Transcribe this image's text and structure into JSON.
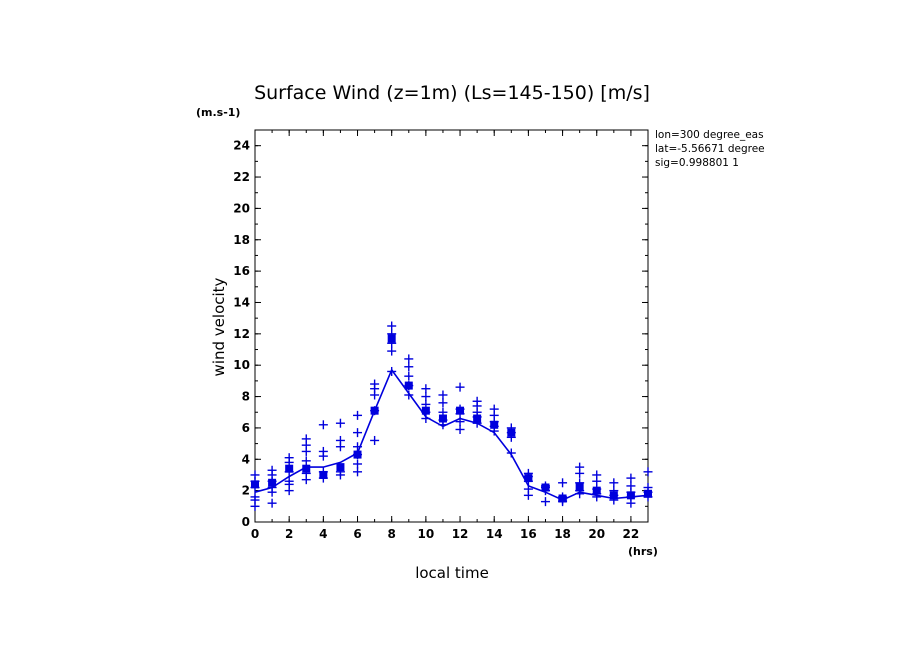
{
  "chart_data": {
    "type": "line",
    "title": "Surface Wind (z=1m) (Ls=145-150) [m/s]",
    "y_unit": "(m.s-1)",
    "x_unit": "(hrs)",
    "xlabel": "local time",
    "ylabel": "wind velocity",
    "xlim": [
      0,
      23
    ],
    "ylim": [
      0,
      25
    ],
    "x_ticks": [
      0,
      2,
      4,
      6,
      8,
      10,
      12,
      14,
      16,
      18,
      20,
      22
    ],
    "y_ticks": [
      0,
      2,
      4,
      6,
      8,
      10,
      12,
      14,
      16,
      18,
      20,
      22,
      24
    ],
    "info_lines": [
      "lon=300 degree_eas",
      "lat=-5.56671 degree",
      "sig=0.998801 1"
    ],
    "colors": {
      "series": "#0000dd"
    },
    "series": [
      {
        "name": "mean",
        "x": [
          0,
          1,
          2,
          3,
          4,
          5,
          6,
          7,
          8,
          9,
          10,
          11,
          12,
          13,
          14,
          15,
          16,
          17,
          18,
          19,
          20,
          21,
          22,
          23
        ],
        "values": [
          1.9,
          2.2,
          2.9,
          3.5,
          3.5,
          3.8,
          4.4,
          7.1,
          9.7,
          8.2,
          6.7,
          6.1,
          6.6,
          6.3,
          5.7,
          4.3,
          2.3,
          1.9,
          1.4,
          1.9,
          1.7,
          1.5,
          1.6,
          1.7
        ]
      },
      {
        "name": "scatter",
        "style": "plus",
        "points": [
          [
            0,
            3.0
          ],
          [
            0,
            2.6
          ],
          [
            0,
            2.2
          ],
          [
            0,
            1.6
          ],
          [
            0,
            1.4
          ],
          [
            0,
            1.0
          ],
          [
            1,
            3.3
          ],
          [
            1,
            3.0
          ],
          [
            1,
            2.6
          ],
          [
            1,
            2.2
          ],
          [
            1,
            1.9
          ],
          [
            1,
            1.2
          ],
          [
            2,
            4.1
          ],
          [
            2,
            3.8
          ],
          [
            2,
            3.2
          ],
          [
            2,
            2.6
          ],
          [
            2,
            2.4
          ],
          [
            2,
            2.0
          ],
          [
            3,
            5.3
          ],
          [
            3,
            4.9
          ],
          [
            3,
            4.5
          ],
          [
            3,
            3.9
          ],
          [
            3,
            3.1
          ],
          [
            3,
            2.7
          ],
          [
            4,
            6.2
          ],
          [
            4,
            4.5
          ],
          [
            4,
            4.2
          ],
          [
            4,
            3.2
          ],
          [
            4,
            2.8
          ],
          [
            5,
            6.3
          ],
          [
            5,
            5.2
          ],
          [
            5,
            4.8
          ],
          [
            5,
            3.2
          ],
          [
            5,
            3.0
          ],
          [
            6,
            6.8
          ],
          [
            6,
            5.7
          ],
          [
            6,
            4.8
          ],
          [
            6,
            4.3
          ],
          [
            6,
            3.7
          ],
          [
            6,
            3.2
          ],
          [
            7,
            8.8
          ],
          [
            7,
            8.5
          ],
          [
            7,
            8.1
          ],
          [
            7,
            7.1
          ],
          [
            7,
            5.2
          ],
          [
            8,
            12.5
          ],
          [
            8,
            12.0
          ],
          [
            8,
            11.4
          ],
          [
            8,
            10.9
          ],
          [
            8,
            9.6
          ],
          [
            9,
            10.4
          ],
          [
            9,
            9.9
          ],
          [
            9,
            9.3
          ],
          [
            9,
            8.7
          ],
          [
            9,
            8.1
          ],
          [
            10,
            8.5
          ],
          [
            10,
            8.0
          ],
          [
            10,
            7.5
          ],
          [
            10,
            7.0
          ],
          [
            10,
            6.6
          ],
          [
            11,
            8.1
          ],
          [
            11,
            7.6
          ],
          [
            11,
            7.0
          ],
          [
            11,
            6.5
          ],
          [
            11,
            6.2
          ],
          [
            12,
            8.6
          ],
          [
            12,
            7.2
          ],
          [
            12,
            6.9
          ],
          [
            12,
            6.4
          ],
          [
            12,
            5.9
          ],
          [
            13,
            7.7
          ],
          [
            13,
            7.4
          ],
          [
            13,
            7.0
          ],
          [
            13,
            6.7
          ],
          [
            13,
            6.3
          ],
          [
            14,
            7.2
          ],
          [
            14,
            6.8
          ],
          [
            14,
            6.4
          ],
          [
            14,
            6.1
          ],
          [
            14,
            5.8
          ],
          [
            15,
            6.0
          ],
          [
            15,
            5.7
          ],
          [
            15,
            5.4
          ],
          [
            15,
            4.4
          ],
          [
            16,
            3.1
          ],
          [
            16,
            2.9
          ],
          [
            16,
            2.6
          ],
          [
            16,
            2.1
          ],
          [
            16,
            1.7
          ],
          [
            17,
            2.3
          ],
          [
            17,
            2.2
          ],
          [
            17,
            2.0
          ],
          [
            17,
            1.3
          ],
          [
            18,
            2.5
          ],
          [
            18,
            1.6
          ],
          [
            18,
            1.4
          ],
          [
            18,
            1.3
          ],
          [
            19,
            3.5
          ],
          [
            19,
            3.1
          ],
          [
            19,
            2.5
          ],
          [
            19,
            2.0
          ],
          [
            19,
            1.8
          ],
          [
            20,
            3.0
          ],
          [
            20,
            2.6
          ],
          [
            20,
            2.1
          ],
          [
            20,
            1.8
          ],
          [
            20,
            1.6
          ],
          [
            21,
            2.5
          ],
          [
            21,
            2.0
          ],
          [
            21,
            1.7
          ],
          [
            21,
            1.4
          ],
          [
            22,
            2.8
          ],
          [
            22,
            2.3
          ],
          [
            22,
            1.9
          ],
          [
            22,
            1.6
          ],
          [
            22,
            1.2
          ],
          [
            23,
            3.2
          ],
          [
            23,
            2.2
          ],
          [
            23,
            1.9
          ],
          [
            23,
            1.6
          ]
        ]
      },
      {
        "name": "box_markers",
        "style": "square",
        "points": [
          [
            0,
            2.4
          ],
          [
            1,
            2.5
          ],
          [
            2,
            3.4
          ],
          [
            3,
            3.4
          ],
          [
            4,
            3.0
          ],
          [
            5,
            3.5
          ],
          [
            6,
            4.3
          ],
          [
            7,
            7.1
          ],
          [
            8,
            11.7
          ],
          [
            9,
            8.7
          ],
          [
            10,
            7.1
          ],
          [
            11,
            6.6
          ],
          [
            12,
            7.1
          ],
          [
            13,
            6.6
          ],
          [
            14,
            6.2
          ],
          [
            15,
            5.7
          ],
          [
            16,
            2.8
          ],
          [
            17,
            2.2
          ],
          [
            18,
            1.5
          ],
          [
            19,
            2.2
          ],
          [
            20,
            2.0
          ],
          [
            21,
            1.7
          ],
          [
            22,
            1.7
          ],
          [
            23,
            1.8
          ]
        ]
      }
    ]
  }
}
